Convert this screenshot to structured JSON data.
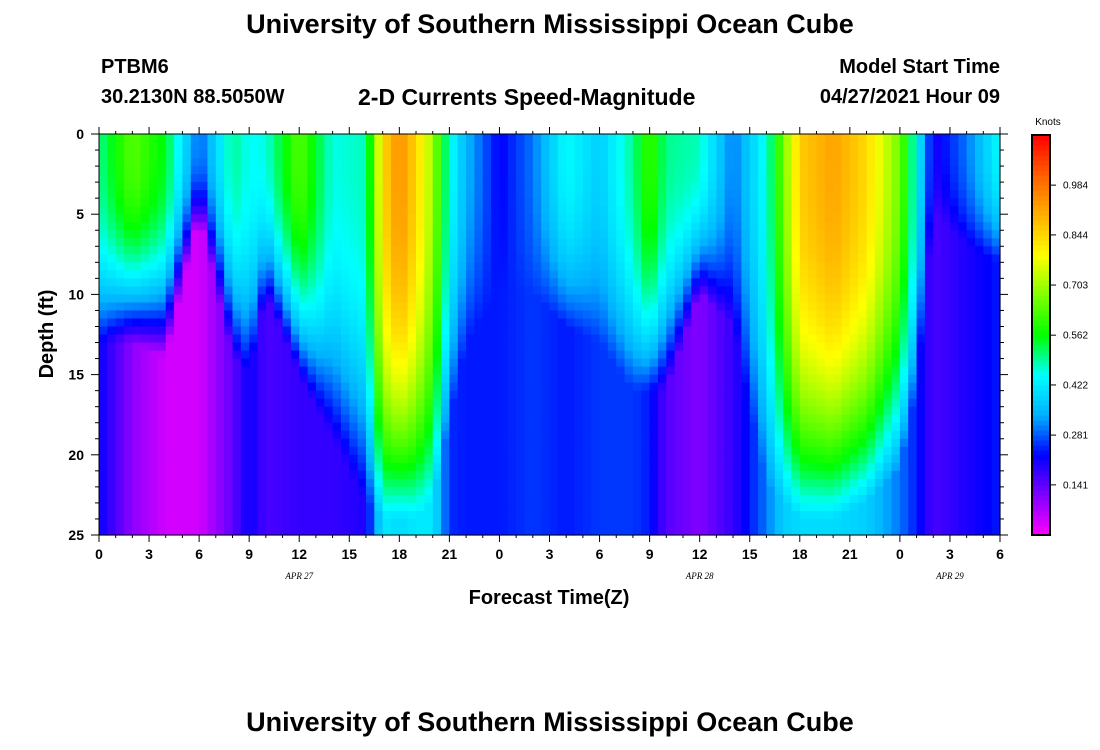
{
  "header": {
    "title": "University of Southern Mississippi Ocean Cube",
    "station_id": "PTBM6",
    "station_coords": "30.2130N  88.5050W",
    "plot_title": "2-D Currents Speed-Magnitude",
    "model_label": "Model Start Time",
    "model_time": "04/27/2021 Hour 09"
  },
  "footer": {
    "title": "University of Southern Mississippi Ocean Cube"
  },
  "chart_data": {
    "type": "heatmap",
    "title": "2-D Currents Speed-Magnitude",
    "xlabel": "Forecast Time(Z)",
    "ylabel": "Depth (ft)",
    "colorbar_label": "Knots",
    "x_tick_labels": [
      "0",
      "3",
      "6",
      "9",
      "12",
      "15",
      "18",
      "21",
      "0",
      "3",
      "6",
      "9",
      "12",
      "15",
      "18",
      "21",
      "0",
      "3",
      "6"
    ],
    "x_range_hours": [
      0,
      54
    ],
    "date_labels": [
      {
        "label": "APR  27",
        "hour": 12
      },
      {
        "label": "APR  28",
        "hour": 36
      },
      {
        "label": "APR  29",
        "hour": 51
      }
    ],
    "y_tick_labels": [
      "0",
      "5",
      "10",
      "15",
      "20",
      "25"
    ],
    "y_range_ft": [
      0,
      25
    ],
    "y_inverted": true,
    "colorbar_ticks": [
      "0.141",
      "0.281",
      "0.422",
      "0.562",
      "0.703",
      "0.844",
      "0.984"
    ],
    "color_range_knots": [
      0,
      1.125
    ],
    "colormap": [
      "#ff00ff",
      "#8000ff",
      "#0000ff",
      "#00b0ff",
      "#00ffff",
      "#00ff00",
      "#80ff00",
      "#ffff00",
      "#ffb000",
      "#ff6000",
      "#ff0000"
    ],
    "time_hours": [
      0,
      2,
      4,
      6,
      8,
      9,
      10,
      12,
      14,
      16,
      17,
      18,
      19,
      20,
      21,
      22,
      24,
      26,
      28,
      30,
      32,
      33,
      34,
      36,
      38,
      40,
      41,
      42,
      44,
      46,
      48,
      49,
      50,
      52,
      54
    ],
    "surface_speed": [
      0.5,
      0.64,
      0.55,
      0.28,
      0.5,
      0.45,
      0.46,
      0.64,
      0.46,
      0.48,
      0.84,
      0.95,
      0.85,
      0.7,
      0.46,
      0.35,
      0.22,
      0.3,
      0.45,
      0.38,
      0.5,
      0.62,
      0.5,
      0.48,
      0.3,
      0.46,
      0.66,
      0.86,
      0.92,
      0.84,
      0.66,
      0.45,
      0.2,
      0.3,
      0.45
    ],
    "surface_extent_ft": [
      13,
      13,
      14,
      5,
      14,
      15,
      10,
      15,
      19,
      23,
      24,
      24,
      24,
      23,
      18,
      13,
      10,
      10,
      12,
      13,
      16,
      16,
      16,
      10,
      12,
      22,
      23,
      24,
      24,
      23,
      21,
      16,
      5,
      7,
      8
    ],
    "bottom_speed": [
      0.22,
      0.1,
      0.04,
      0.04,
      0.14,
      0.22,
      0.16,
      0.18,
      0.18,
      0.2,
      0.42,
      0.4,
      0.42,
      0.42,
      0.25,
      0.24,
      0.24,
      0.26,
      0.24,
      0.26,
      0.26,
      0.24,
      0.15,
      0.11,
      0.18,
      0.3,
      0.38,
      0.4,
      0.4,
      0.38,
      0.3,
      0.24,
      0.16,
      0.2,
      0.24
    ]
  }
}
